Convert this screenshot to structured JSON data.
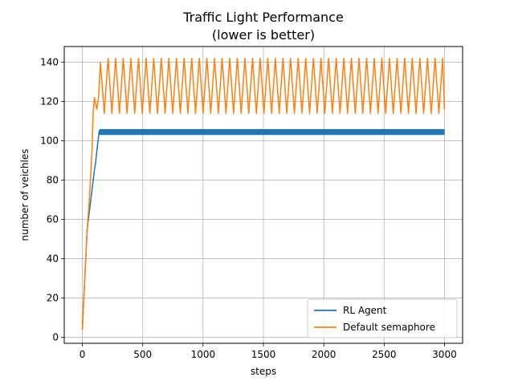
{
  "chart_data": {
    "type": "line",
    "title": "Traffic Light Performance",
    "subtitle": "(lower is better)",
    "xlabel": "steps",
    "ylabel": "number of veichles",
    "xlim": [
      -150,
      3150
    ],
    "ylim": [
      -3,
      148
    ],
    "xticks": [
      0,
      500,
      1000,
      1500,
      2000,
      2500,
      3000
    ],
    "yticks": [
      0,
      20,
      40,
      60,
      80,
      100,
      120,
      140
    ],
    "grid": true,
    "legend_position": "lower-right",
    "series": [
      {
        "name": "RL Agent",
        "color": "#1f77b4",
        "points": [
          [
            0,
            4
          ],
          [
            20,
            30
          ],
          [
            40,
            55
          ],
          [
            60,
            65
          ],
          [
            80,
            75
          ],
          [
            100,
            85
          ],
          [
            110,
            89
          ],
          [
            120,
            95
          ],
          [
            130,
            100
          ],
          [
            140,
            105
          ],
          [
            3000,
            105
          ]
        ],
        "band": [
          103,
          106
        ]
      },
      {
        "name": "Default semaphore",
        "color": "#ff7f0e",
        "points": [
          [
            0,
            4
          ],
          [
            20,
            30
          ],
          [
            40,
            55
          ],
          [
            60,
            72
          ],
          [
            80,
            95
          ],
          [
            90,
            115
          ],
          [
            100,
            122
          ],
          [
            110,
            119
          ],
          [
            120,
            116
          ],
          [
            135,
            123
          ],
          [
            150,
            140
          ]
        ],
        "oscillation": {
          "start": 150,
          "end": 3000,
          "period": 63,
          "low": 114,
          "high": 142,
          "end_value": 116
        }
      }
    ]
  }
}
